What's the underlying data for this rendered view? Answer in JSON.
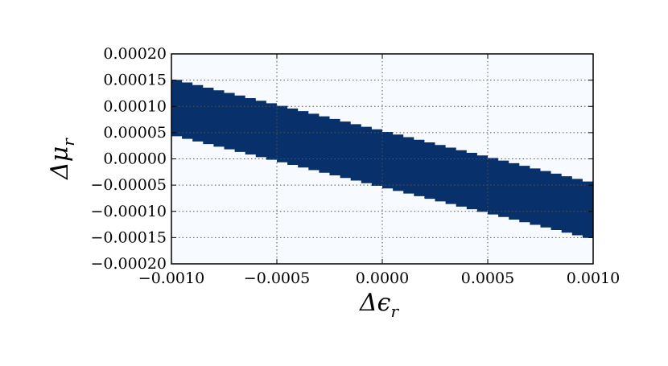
{
  "chart_data": {
    "type": "heatmap",
    "title": "",
    "xlabel": "Δε_r",
    "ylabel": "Δμ_r",
    "xlabel_parts": {
      "symbol": "Δϵ",
      "subscript": "r"
    },
    "ylabel_parts": {
      "symbol": "Δμ",
      "subscript": "r"
    },
    "xlim": [
      -0.001,
      0.001
    ],
    "ylim": [
      -0.0002,
      0.0002
    ],
    "x_ticks": [
      -0.001,
      -0.0005,
      0.0,
      0.0005,
      0.001
    ],
    "x_tick_labels": [
      "−0.0010",
      "−0.0005",
      "0.0000",
      "0.0005",
      "0.0010"
    ],
    "y_ticks": [
      0.0002,
      0.00015,
      0.0001,
      5e-05,
      0.0,
      -5e-05,
      -0.0001,
      -0.00015,
      -0.0002
    ],
    "y_tick_labels": [
      "0.00020",
      "0.00015",
      "0.00010",
      "0.00005",
      "0.00000",
      "−0.00005",
      "−0.00010",
      "−0.00015",
      "−0.00020"
    ],
    "grid": true,
    "grid_style": "dotted",
    "band": {
      "x_edges": [
        -0.001,
        0.001
      ],
      "upper_y": [
        0.000153,
        -4.55e-05
      ],
      "lower_y": [
        4.55e-05,
        -0.000153
      ],
      "steps": 40
    },
    "colors": {
      "background": "#f7fbff",
      "band": "#08306b",
      "grid": "#555555",
      "axes": "#000000"
    }
  }
}
